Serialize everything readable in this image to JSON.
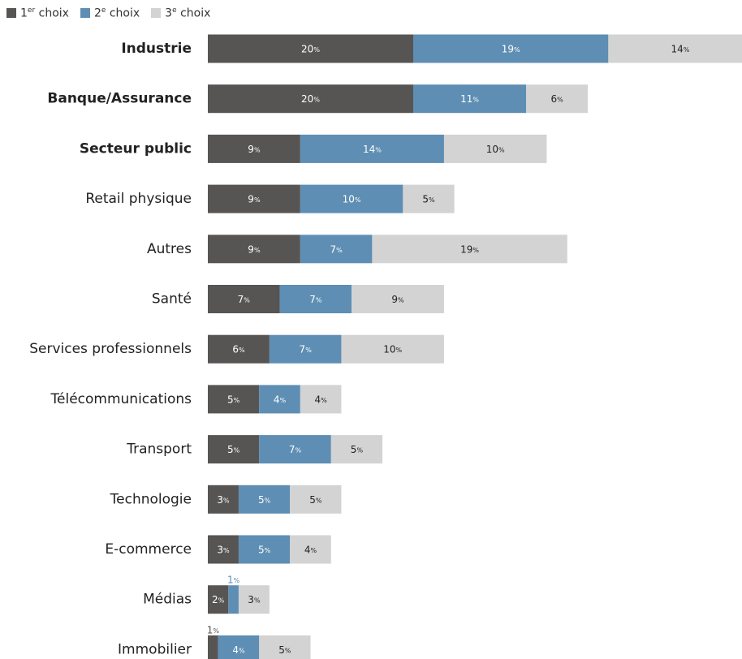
{
  "chart_data": {
    "type": "bar",
    "orientation": "horizontal",
    "stacked": true,
    "legend_position": "top-left",
    "grid": false,
    "colors": {
      "1er": "#575553",
      "2e": "#5e8eb3",
      "3e": "#d3d3d3",
      "label_dark": "#222222",
      "label_light": "#ffffff"
    },
    "legend": [
      {
        "prefix": "1",
        "sup": "er",
        "suffix": " choix"
      },
      {
        "prefix": "2",
        "sup": "e",
        "suffix": " choix"
      },
      {
        "prefix": "3",
        "sup": "e",
        "suffix": " choix"
      }
    ],
    "categories": [
      "Industrie",
      "Banque/Assurance",
      "Secteur public",
      "Retail physique",
      "Autres",
      "Santé",
      "Services professionnels",
      "Télécommunications",
      "Transport",
      "Technologie",
      "E-commerce",
      "Médias",
      "Immobilier"
    ],
    "bold_categories": [
      "Industrie",
      "Banque/Assurance",
      "Secteur public"
    ],
    "series": [
      {
        "name": "1er choix",
        "values": [
          20,
          20,
          9,
          9,
          9,
          7,
          6,
          5,
          5,
          3,
          3,
          2,
          1
        ]
      },
      {
        "name": "2e choix",
        "values": [
          19,
          11,
          14,
          10,
          7,
          7,
          7,
          4,
          7,
          5,
          5,
          1,
          4
        ]
      },
      {
        "name": "3e choix",
        "values": [
          14,
          6,
          10,
          5,
          19,
          9,
          10,
          4,
          5,
          5,
          4,
          3,
          5
        ]
      }
    ],
    "value_suffix": "%"
  }
}
